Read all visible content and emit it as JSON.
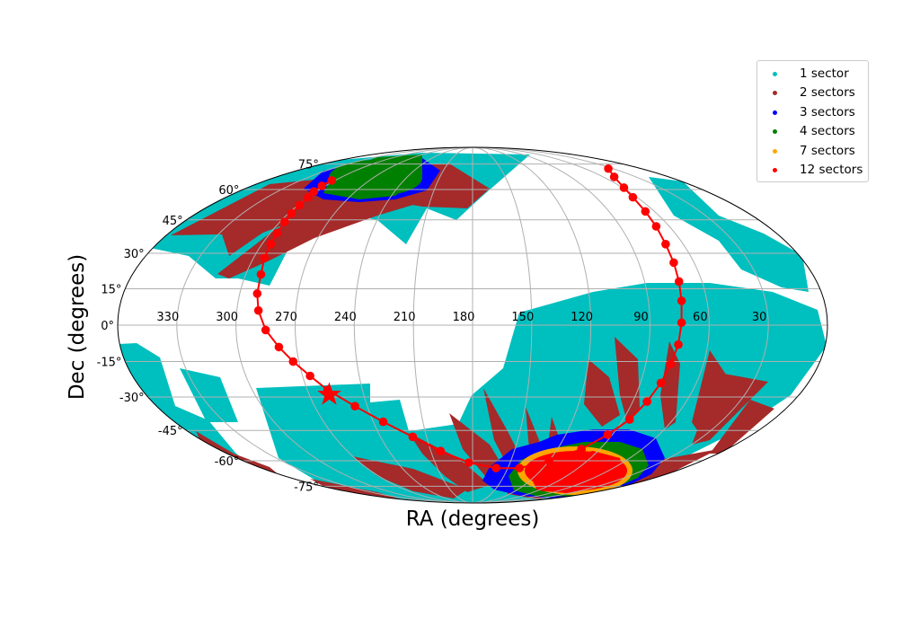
{
  "chart_data": {
    "type": "scatter",
    "projection": "mollweide",
    "xlabel": "RA (degrees)",
    "ylabel": "Dec (degrees)",
    "ra_tick_labels": [
      "330",
      "300",
      "270",
      "240",
      "210",
      "180",
      "150",
      "120",
      "90",
      "60",
      "30"
    ],
    "dec_tick_labels": [
      "75°",
      "60°",
      "45°",
      "30°",
      "15°",
      "0°",
      "-15°",
      "-30°",
      "-45°",
      "-60°",
      "-75°"
    ],
    "grid": true,
    "legend": {
      "placement": "top-right",
      "entries": [
        {
          "label": "1 sector",
          "color": "#00bfbf"
        },
        {
          "label": "2 sectors",
          "color": "#a52a2a"
        },
        {
          "label": "3 sectors",
          "color": "#0000ff"
        },
        {
          "label": "4 sectors",
          "color": "#008000"
        },
        {
          "label": "7 sectors",
          "color": "#ffa500"
        },
        {
          "label": "12 sectors",
          "color": "#ff0000"
        }
      ]
    },
    "ecliptic": {
      "color": "#ff0000",
      "points": [
        {
          "ra": 303,
          "dec": 65
        },
        {
          "ra": 303,
          "dec": 62
        },
        {
          "ra": 302,
          "dec": 59
        },
        {
          "ra": 300,
          "dec": 56
        },
        {
          "ra": 299,
          "dec": 52
        },
        {
          "ra": 298,
          "dec": 48
        },
        {
          "ra": 297,
          "dec": 44
        },
        {
          "ra": 296,
          "dec": 39
        },
        {
          "ra": 295,
          "dec": 34
        },
        {
          "ra": 294,
          "dec": 28
        },
        {
          "ra": 292,
          "dec": 21
        },
        {
          "ra": 291,
          "dec": 13
        },
        {
          "ra": 289,
          "dec": 6
        },
        {
          "ra": 285,
          "dec": -2
        },
        {
          "ra": 279,
          "dec": -9
        },
        {
          "ra": 273,
          "dec": -15
        },
        {
          "ra": 266,
          "dec": -21
        },
        {
          "ra": 259,
          "dec": -27
        },
        {
          "ra": 247,
          "dec": -34
        },
        {
          "ra": 234,
          "dec": -41
        },
        {
          "ra": 219,
          "dec": -48
        },
        {
          "ra": 203,
          "dec": -55
        },
        {
          "ra": 183,
          "dec": -61
        },
        {
          "ra": 160,
          "dec": -64
        },
        {
          "ra": 140,
          "dec": -64
        },
        {
          "ra": 120,
          "dec": -60
        },
        {
          "ra": 103,
          "dec": -54
        },
        {
          "ra": 93,
          "dec": -47
        },
        {
          "ra": 86,
          "dec": -40
        },
        {
          "ra": 82,
          "dec": -32
        },
        {
          "ra": 79,
          "dec": -24
        },
        {
          "ra": 77,
          "dec": -16
        },
        {
          "ra": 75,
          "dec": -8
        },
        {
          "ra": 74,
          "dec": 1
        },
        {
          "ra": 73,
          "dec": 10
        },
        {
          "ra": 72,
          "dec": 18
        },
        {
          "ra": 71,
          "dec": 26
        },
        {
          "ra": 70,
          "dec": 34
        },
        {
          "ra": 68,
          "dec": 42
        },
        {
          "ra": 66,
          "dec": 49
        },
        {
          "ra": 63,
          "dec": 56
        },
        {
          "ra": 59,
          "dec": 61
        },
        {
          "ra": 50,
          "dec": 67
        },
        {
          "ra": 35,
          "dec": 72
        }
      ],
      "star_marker": {
        "ra": 259,
        "dec": -29
      }
    }
  }
}
